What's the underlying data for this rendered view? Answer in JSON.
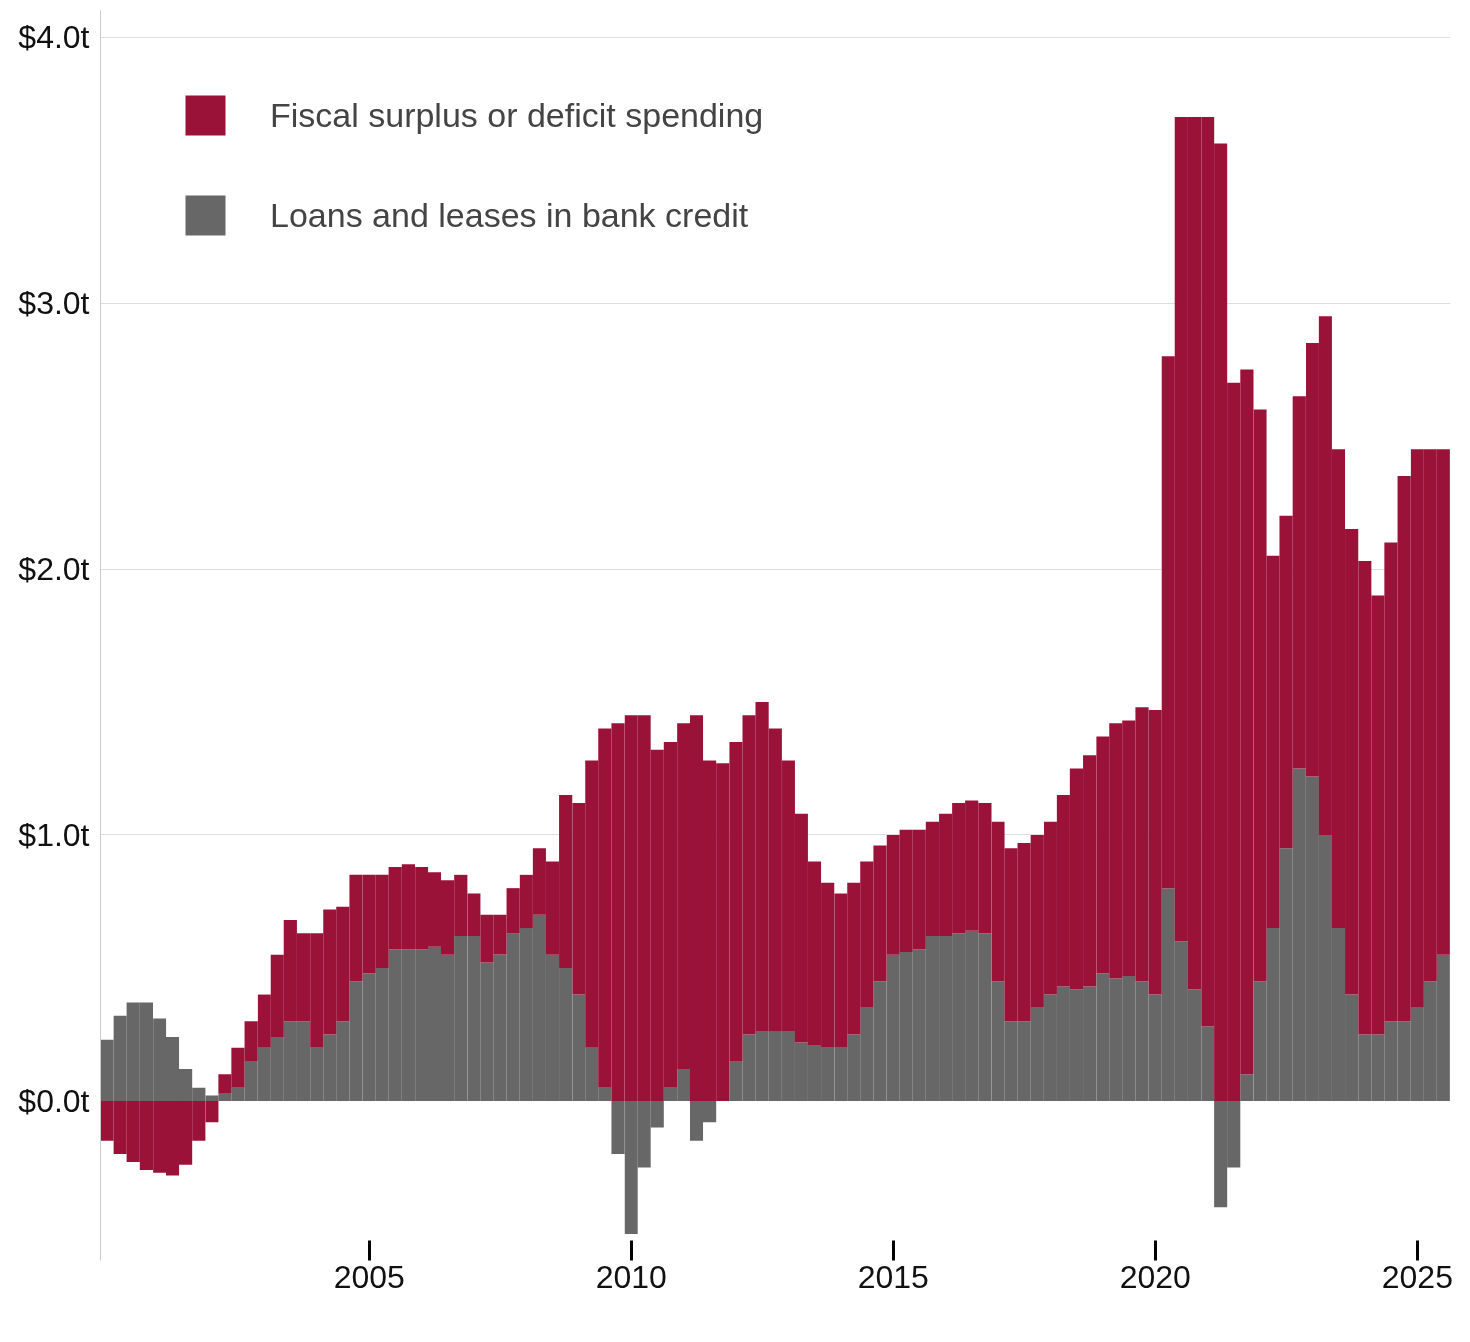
{
  "chart_data": {
    "type": "bar",
    "stacked": true,
    "x": [
      "2000-01",
      "2000-04",
      "2000-07",
      "2000-10",
      "2001-01",
      "2001-04",
      "2001-07",
      "2001-10",
      "2002-01",
      "2002-04",
      "2002-07",
      "2002-10",
      "2003-01",
      "2003-04",
      "2003-07",
      "2003-10",
      "2004-01",
      "2004-04",
      "2004-07",
      "2004-10",
      "2005-01",
      "2005-04",
      "2005-07",
      "2005-10",
      "2006-01",
      "2006-04",
      "2006-07",
      "2006-10",
      "2007-01",
      "2007-04",
      "2007-07",
      "2007-10",
      "2008-01",
      "2008-04",
      "2008-07",
      "2008-10",
      "2009-01",
      "2009-04",
      "2009-07",
      "2009-10",
      "2010-01",
      "2010-04",
      "2010-07",
      "2010-10",
      "2011-01",
      "2011-04",
      "2011-07",
      "2011-10",
      "2012-01",
      "2012-04",
      "2012-07",
      "2012-10",
      "2013-01",
      "2013-04",
      "2013-07",
      "2013-10",
      "2014-01",
      "2014-04",
      "2014-07",
      "2014-10",
      "2015-01",
      "2015-04",
      "2015-07",
      "2015-10",
      "2016-01",
      "2016-04",
      "2016-07",
      "2016-10",
      "2017-01",
      "2017-04",
      "2017-07",
      "2017-10",
      "2018-01",
      "2018-04",
      "2018-07",
      "2018-10",
      "2019-01",
      "2019-04",
      "2019-07",
      "2019-10",
      "2020-01",
      "2020-04",
      "2020-07",
      "2020-10",
      "2021-01",
      "2021-04",
      "2021-07",
      "2021-10",
      "2022-01",
      "2022-04",
      "2022-07",
      "2022-10",
      "2023-01",
      "2023-04",
      "2023-07",
      "2023-10",
      "2024-01",
      "2024-04",
      "2024-07",
      "2024-10",
      "2025-01",
      "2025-04",
      "2025-07"
    ],
    "series": [
      {
        "name": "Loans and leases in bank credit",
        "color": "#676767",
        "values": [
          0.23,
          0.32,
          0.37,
          0.37,
          0.31,
          0.24,
          0.12,
          0.05,
          0.02,
          0.03,
          0.05,
          0.15,
          0.2,
          0.24,
          0.3,
          0.3,
          0.2,
          0.25,
          0.3,
          0.45,
          0.48,
          0.5,
          0.57,
          0.57,
          0.57,
          0.58,
          0.55,
          0.62,
          0.62,
          0.52,
          0.55,
          0.63,
          0.65,
          0.7,
          0.55,
          0.5,
          0.4,
          0.2,
          0.05,
          -0.2,
          -0.5,
          -0.25,
          -0.1,
          0.05,
          0.12,
          -0.15,
          -0.08,
          0.0,
          0.15,
          0.25,
          0.26,
          0.26,
          0.26,
          0.22,
          0.21,
          0.2,
          0.2,
          0.25,
          0.35,
          0.45,
          0.55,
          0.56,
          0.57,
          0.62,
          0.62,
          0.63,
          0.64,
          0.63,
          0.45,
          0.3,
          0.3,
          0.35,
          0.4,
          0.43,
          0.42,
          0.43,
          0.48,
          0.46,
          0.47,
          0.45,
          0.4,
          0.8,
          0.6,
          0.42,
          0.28,
          -0.4,
          -0.25,
          0.1,
          0.45,
          0.65,
          0.95,
          1.25,
          1.22,
          1.0,
          0.65,
          0.4,
          0.25,
          0.25,
          0.3,
          0.3,
          0.35,
          0.45,
          0.55
        ]
      },
      {
        "name": "Fiscal surplus or deficit spending",
        "color": "#9b1239",
        "values": [
          -0.15,
          -0.2,
          -0.23,
          -0.26,
          -0.27,
          -0.28,
          -0.24,
          -0.15,
          -0.08,
          0.07,
          0.15,
          0.15,
          0.2,
          0.31,
          0.38,
          0.33,
          0.43,
          0.47,
          0.43,
          0.4,
          0.37,
          0.35,
          0.31,
          0.32,
          0.31,
          0.28,
          0.28,
          0.23,
          0.16,
          0.18,
          0.15,
          0.17,
          0.2,
          0.25,
          0.35,
          0.65,
          0.72,
          1.08,
          1.35,
          1.42,
          1.45,
          1.45,
          1.32,
          1.3,
          1.3,
          1.45,
          1.28,
          1.27,
          1.2,
          1.2,
          1.24,
          1.14,
          1.02,
          0.86,
          0.69,
          0.62,
          0.58,
          0.57,
          0.55,
          0.51,
          0.45,
          0.46,
          0.45,
          0.43,
          0.46,
          0.49,
          0.49,
          0.49,
          0.6,
          0.65,
          0.67,
          0.65,
          0.65,
          0.72,
          0.83,
          0.87,
          0.89,
          0.96,
          0.96,
          1.03,
          1.07,
          2.0,
          3.1,
          3.28,
          3.42,
          3.6,
          2.7,
          2.65,
          2.15,
          1.4,
          1.25,
          1.4,
          1.63,
          1.95,
          1.8,
          1.75,
          1.78,
          1.65,
          1.8,
          2.05,
          2.1,
          2.0,
          1.9
        ]
      }
    ],
    "xlim": [
      "1999-11-16",
      "2025-08-20"
    ],
    "xticks": [
      "2005",
      "2010",
      "2015",
      "2020",
      "2025"
    ],
    "ylim": [
      -0.6,
      4.1
    ],
    "yticks": [
      {
        "value": 0,
        "label": "$0.0t"
      },
      {
        "value": 1,
        "label": "$1.0t"
      },
      {
        "value": 2,
        "label": "$2.0t"
      },
      {
        "value": 3,
        "label": "$3.0t"
      },
      {
        "value": 4,
        "label": "$4.0t"
      }
    ],
    "grid": "y",
    "legend": "top left"
  }
}
